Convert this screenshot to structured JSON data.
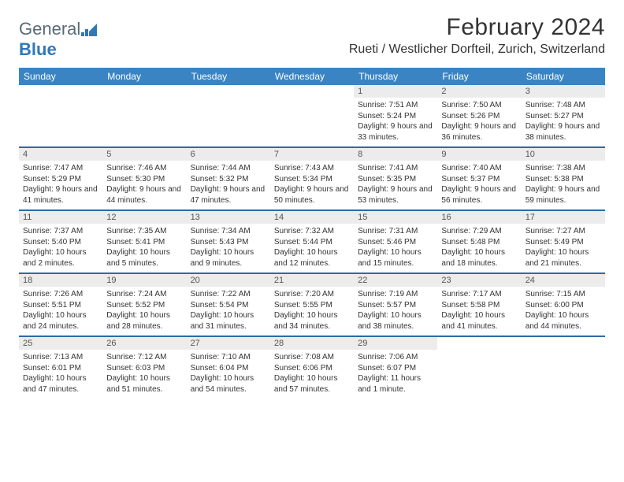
{
  "brand": {
    "part1": "General",
    "part2": "Blue"
  },
  "title": "February 2024",
  "location": "Rueti / Westlicher Dorfteil, Zurich, Switzerland",
  "colors": {
    "header_bg": "#3a84c4",
    "header_text": "#ffffff",
    "week_border": "#2e6aa3",
    "daynum_bg": "#ececec",
    "daynum_text": "#555555",
    "body_text": "#333333",
    "logo_gray": "#5a6a78",
    "logo_blue": "#2f78b8",
    "page_bg": "#ffffff"
  },
  "fonts": {
    "title_size_pt": 22,
    "location_size_pt": 12,
    "dow_size_pt": 9,
    "daynum_size_pt": 8,
    "body_size_pt": 7.5
  },
  "days_of_week": [
    "Sunday",
    "Monday",
    "Tuesday",
    "Wednesday",
    "Thursday",
    "Friday",
    "Saturday"
  ],
  "weeks": [
    [
      {
        "num": "",
        "sunrise": "",
        "sunset": "",
        "daylight": ""
      },
      {
        "num": "",
        "sunrise": "",
        "sunset": "",
        "daylight": ""
      },
      {
        "num": "",
        "sunrise": "",
        "sunset": "",
        "daylight": ""
      },
      {
        "num": "",
        "sunrise": "",
        "sunset": "",
        "daylight": ""
      },
      {
        "num": "1",
        "sunrise": "Sunrise: 7:51 AM",
        "sunset": "Sunset: 5:24 PM",
        "daylight": "Daylight: 9 hours and 33 minutes."
      },
      {
        "num": "2",
        "sunrise": "Sunrise: 7:50 AM",
        "sunset": "Sunset: 5:26 PM",
        "daylight": "Daylight: 9 hours and 36 minutes."
      },
      {
        "num": "3",
        "sunrise": "Sunrise: 7:48 AM",
        "sunset": "Sunset: 5:27 PM",
        "daylight": "Daylight: 9 hours and 38 minutes."
      }
    ],
    [
      {
        "num": "4",
        "sunrise": "Sunrise: 7:47 AM",
        "sunset": "Sunset: 5:29 PM",
        "daylight": "Daylight: 9 hours and 41 minutes."
      },
      {
        "num": "5",
        "sunrise": "Sunrise: 7:46 AM",
        "sunset": "Sunset: 5:30 PM",
        "daylight": "Daylight: 9 hours and 44 minutes."
      },
      {
        "num": "6",
        "sunrise": "Sunrise: 7:44 AM",
        "sunset": "Sunset: 5:32 PM",
        "daylight": "Daylight: 9 hours and 47 minutes."
      },
      {
        "num": "7",
        "sunrise": "Sunrise: 7:43 AM",
        "sunset": "Sunset: 5:34 PM",
        "daylight": "Daylight: 9 hours and 50 minutes."
      },
      {
        "num": "8",
        "sunrise": "Sunrise: 7:41 AM",
        "sunset": "Sunset: 5:35 PM",
        "daylight": "Daylight: 9 hours and 53 minutes."
      },
      {
        "num": "9",
        "sunrise": "Sunrise: 7:40 AM",
        "sunset": "Sunset: 5:37 PM",
        "daylight": "Daylight: 9 hours and 56 minutes."
      },
      {
        "num": "10",
        "sunrise": "Sunrise: 7:38 AM",
        "sunset": "Sunset: 5:38 PM",
        "daylight": "Daylight: 9 hours and 59 minutes."
      }
    ],
    [
      {
        "num": "11",
        "sunrise": "Sunrise: 7:37 AM",
        "sunset": "Sunset: 5:40 PM",
        "daylight": "Daylight: 10 hours and 2 minutes."
      },
      {
        "num": "12",
        "sunrise": "Sunrise: 7:35 AM",
        "sunset": "Sunset: 5:41 PM",
        "daylight": "Daylight: 10 hours and 5 minutes."
      },
      {
        "num": "13",
        "sunrise": "Sunrise: 7:34 AM",
        "sunset": "Sunset: 5:43 PM",
        "daylight": "Daylight: 10 hours and 9 minutes."
      },
      {
        "num": "14",
        "sunrise": "Sunrise: 7:32 AM",
        "sunset": "Sunset: 5:44 PM",
        "daylight": "Daylight: 10 hours and 12 minutes."
      },
      {
        "num": "15",
        "sunrise": "Sunrise: 7:31 AM",
        "sunset": "Sunset: 5:46 PM",
        "daylight": "Daylight: 10 hours and 15 minutes."
      },
      {
        "num": "16",
        "sunrise": "Sunrise: 7:29 AM",
        "sunset": "Sunset: 5:48 PM",
        "daylight": "Daylight: 10 hours and 18 minutes."
      },
      {
        "num": "17",
        "sunrise": "Sunrise: 7:27 AM",
        "sunset": "Sunset: 5:49 PM",
        "daylight": "Daylight: 10 hours and 21 minutes."
      }
    ],
    [
      {
        "num": "18",
        "sunrise": "Sunrise: 7:26 AM",
        "sunset": "Sunset: 5:51 PM",
        "daylight": "Daylight: 10 hours and 24 minutes."
      },
      {
        "num": "19",
        "sunrise": "Sunrise: 7:24 AM",
        "sunset": "Sunset: 5:52 PM",
        "daylight": "Daylight: 10 hours and 28 minutes."
      },
      {
        "num": "20",
        "sunrise": "Sunrise: 7:22 AM",
        "sunset": "Sunset: 5:54 PM",
        "daylight": "Daylight: 10 hours and 31 minutes."
      },
      {
        "num": "21",
        "sunrise": "Sunrise: 7:20 AM",
        "sunset": "Sunset: 5:55 PM",
        "daylight": "Daylight: 10 hours and 34 minutes."
      },
      {
        "num": "22",
        "sunrise": "Sunrise: 7:19 AM",
        "sunset": "Sunset: 5:57 PM",
        "daylight": "Daylight: 10 hours and 38 minutes."
      },
      {
        "num": "23",
        "sunrise": "Sunrise: 7:17 AM",
        "sunset": "Sunset: 5:58 PM",
        "daylight": "Daylight: 10 hours and 41 minutes."
      },
      {
        "num": "24",
        "sunrise": "Sunrise: 7:15 AM",
        "sunset": "Sunset: 6:00 PM",
        "daylight": "Daylight: 10 hours and 44 minutes."
      }
    ],
    [
      {
        "num": "25",
        "sunrise": "Sunrise: 7:13 AM",
        "sunset": "Sunset: 6:01 PM",
        "daylight": "Daylight: 10 hours and 47 minutes."
      },
      {
        "num": "26",
        "sunrise": "Sunrise: 7:12 AM",
        "sunset": "Sunset: 6:03 PM",
        "daylight": "Daylight: 10 hours and 51 minutes."
      },
      {
        "num": "27",
        "sunrise": "Sunrise: 7:10 AM",
        "sunset": "Sunset: 6:04 PM",
        "daylight": "Daylight: 10 hours and 54 minutes."
      },
      {
        "num": "28",
        "sunrise": "Sunrise: 7:08 AM",
        "sunset": "Sunset: 6:06 PM",
        "daylight": "Daylight: 10 hours and 57 minutes."
      },
      {
        "num": "29",
        "sunrise": "Sunrise: 7:06 AM",
        "sunset": "Sunset: 6:07 PM",
        "daylight": "Daylight: 11 hours and 1 minute."
      },
      {
        "num": "",
        "sunrise": "",
        "sunset": "",
        "daylight": ""
      },
      {
        "num": "",
        "sunrise": "",
        "sunset": "",
        "daylight": ""
      }
    ]
  ]
}
